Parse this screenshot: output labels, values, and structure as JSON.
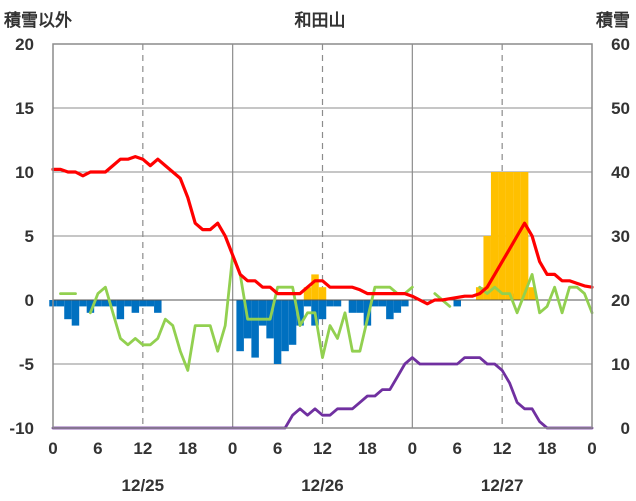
{
  "chart_data": {
    "type": "mixed",
    "title": "和田山",
    "left_axis_label": "積雪以外",
    "right_axis_label": "積雪",
    "left_ylim": [
      -10,
      20
    ],
    "left_ticks": [
      20,
      15,
      10,
      5,
      0,
      -5,
      -10
    ],
    "right_ylim": [
      0,
      60
    ],
    "right_ticks": [
      60,
      50,
      40,
      30,
      20,
      10,
      0
    ],
    "xlim": [
      0,
      72
    ],
    "x_tick_labels": [
      "0",
      "6",
      "12",
      "18",
      "0",
      "6",
      "12",
      "18",
      "0",
      "6",
      "12",
      "18",
      "0"
    ],
    "dates": [
      "12/25",
      "12/26",
      "12/27"
    ],
    "grid": true,
    "series": [
      {
        "kind": "bar",
        "color": "#0070c0",
        "axis": "left",
        "points": [
          [
            0,
            -0.5
          ],
          [
            1,
            -0.5
          ],
          [
            2,
            -1.5
          ],
          [
            3,
            -2
          ],
          [
            4,
            -0.5
          ],
          [
            5,
            -1
          ],
          [
            6,
            -0.5
          ],
          [
            7,
            -0.5
          ],
          [
            8,
            -0.5
          ],
          [
            9,
            -1.5
          ],
          [
            10,
            -0.5
          ],
          [
            11,
            -1
          ],
          [
            12,
            -0.5
          ],
          [
            13,
            -0.5
          ],
          [
            14,
            -1
          ],
          [
            25,
            -4
          ],
          [
            26,
            -3
          ],
          [
            27,
            -4.5
          ],
          [
            28,
            -2
          ],
          [
            29,
            -3
          ],
          [
            30,
            -5
          ],
          [
            31,
            -4
          ],
          [
            32,
            -3.5
          ],
          [
            33,
            -2
          ],
          [
            34,
            -0.5
          ],
          [
            35,
            -2
          ],
          [
            36,
            -1.5
          ],
          [
            37,
            -0.5
          ],
          [
            38,
            -0.5
          ],
          [
            40,
            -1
          ],
          [
            41,
            -1
          ],
          [
            42,
            -2
          ],
          [
            43,
            -0.5
          ],
          [
            44,
            -0.5
          ],
          [
            45,
            -1.5
          ],
          [
            46,
            -1
          ],
          [
            47,
            -0.5
          ],
          [
            54,
            -0.5
          ],
          [
            61,
            0.5
          ]
        ]
      },
      {
        "kind": "bar",
        "color": "#ffc000",
        "axis": "left",
        "points": [
          [
            34,
            1
          ],
          [
            35,
            2
          ],
          [
            36,
            1
          ],
          [
            57,
            1
          ],
          [
            58,
            5
          ],
          [
            59,
            10
          ],
          [
            60,
            10
          ],
          [
            61,
            10
          ],
          [
            62,
            10
          ],
          [
            63,
            10
          ],
          [
            64,
            1
          ]
        ]
      },
      {
        "kind": "line",
        "color": "#92d050",
        "axis": "left",
        "segments": [
          [
            [
              1,
              0.5
            ],
            [
              2,
              0.5
            ],
            [
              3,
              0.5
            ]
          ],
          [
            [
              5,
              -1
            ],
            [
              6,
              0.5
            ],
            [
              7,
              1
            ],
            [
              8,
              -1
            ],
            [
              9,
              -3
            ],
            [
              10,
              -3.5
            ],
            [
              11,
              -3
            ],
            [
              12,
              -3.5
            ],
            [
              13,
              -3.5
            ],
            [
              14,
              -3
            ],
            [
              15,
              -1.5
            ],
            [
              16,
              -2
            ],
            [
              17,
              -4
            ],
            [
              18,
              -5.5
            ],
            [
              19,
              -2
            ],
            [
              20,
              -2
            ],
            [
              21,
              -2
            ],
            [
              22,
              -4
            ],
            [
              23,
              -2
            ],
            [
              24,
              3.5
            ],
            [
              25,
              2
            ],
            [
              26,
              -1.5
            ],
            [
              27,
              -1.5
            ],
            [
              28,
              -1.5
            ],
            [
              29,
              -1.5
            ],
            [
              30,
              1
            ],
            [
              31,
              1
            ],
            [
              32,
              1
            ],
            [
              33,
              -2
            ],
            [
              34,
              -1
            ],
            [
              35,
              -1
            ],
            [
              36,
              -4.5
            ],
            [
              37,
              -2
            ],
            [
              38,
              -3
            ],
            [
              39,
              -1
            ],
            [
              40,
              -4
            ],
            [
              41,
              -4
            ],
            [
              42,
              -1.5
            ],
            [
              43,
              1
            ],
            [
              44,
              1
            ],
            [
              45,
              1
            ],
            [
              46,
              0.5
            ],
            [
              47,
              0.5
            ],
            [
              48,
              1
            ]
          ],
          [
            [
              51,
              0.5
            ],
            [
              52,
              0
            ],
            [
              53,
              -0.5
            ]
          ],
          [
            [
              57,
              1
            ],
            [
              58,
              0.5
            ],
            [
              59,
              1
            ],
            [
              60,
              0.5
            ],
            [
              61,
              0.5
            ],
            [
              62,
              -1
            ],
            [
              63,
              0.5
            ],
            [
              64,
              2
            ],
            [
              65,
              -1
            ],
            [
              66,
              -0.5
            ],
            [
              67,
              1
            ],
            [
              68,
              -1
            ],
            [
              69,
              1
            ],
            [
              70,
              1
            ],
            [
              71,
              0.5
            ],
            [
              72,
              -1
            ]
          ]
        ]
      },
      {
        "kind": "line",
        "color": "#ff0000",
        "axis": "left",
        "segments": [
          [
            [
              0,
              10.2
            ],
            [
              1,
              10.2
            ],
            [
              2,
              10
            ],
            [
              3,
              10
            ],
            [
              4,
              9.7
            ],
            [
              5,
              10
            ],
            [
              6,
              10
            ],
            [
              7,
              10
            ],
            [
              8,
              10.5
            ],
            [
              9,
              11
            ],
            [
              10,
              11
            ],
            [
              11,
              11.2
            ],
            [
              12,
              11
            ],
            [
              13,
              10.5
            ],
            [
              14,
              11
            ],
            [
              15,
              10.5
            ],
            [
              16,
              10
            ],
            [
              17,
              9.5
            ],
            [
              18,
              8
            ],
            [
              19,
              6
            ],
            [
              20,
              5.5
            ],
            [
              21,
              5.5
            ],
            [
              22,
              6
            ],
            [
              23,
              5
            ],
            [
              24,
              3.5
            ],
            [
              25,
              2
            ],
            [
              26,
              1.5
            ],
            [
              27,
              1.5
            ],
            [
              28,
              1
            ],
            [
              29,
              1
            ],
            [
              30,
              0.5
            ],
            [
              31,
              0.5
            ],
            [
              32,
              0.5
            ],
            [
              33,
              0.5
            ],
            [
              34,
              1
            ],
            [
              35,
              1.5
            ],
            [
              36,
              1.5
            ],
            [
              37,
              1
            ],
            [
              38,
              1
            ],
            [
              39,
              1
            ],
            [
              40,
              1
            ],
            [
              41,
              0.8
            ],
            [
              42,
              0.5
            ],
            [
              43,
              0.5
            ],
            [
              44,
              0.5
            ],
            [
              45,
              0.5
            ],
            [
              46,
              0.5
            ],
            [
              47,
              0.5
            ],
            [
              48,
              0.3
            ],
            [
              49,
              0
            ],
            [
              50,
              -0.3
            ],
            [
              51,
              0
            ],
            [
              52,
              0
            ],
            [
              53,
              0.1
            ],
            [
              54,
              0.2
            ],
            [
              55,
              0.3
            ],
            [
              56,
              0.3
            ],
            [
              57,
              0.5
            ],
            [
              58,
              1
            ],
            [
              59,
              2
            ],
            [
              60,
              3
            ],
            [
              61,
              4
            ],
            [
              62,
              5
            ],
            [
              63,
              6
            ],
            [
              64,
              5
            ],
            [
              65,
              3
            ],
            [
              66,
              2
            ],
            [
              67,
              2
            ],
            [
              68,
              1.5
            ],
            [
              69,
              1.5
            ],
            [
              70,
              1.3
            ],
            [
              71,
              1.1
            ],
            [
              72,
              1
            ]
          ]
        ]
      },
      {
        "kind": "line",
        "color": "#7030a0",
        "axis": "right",
        "segments": [
          [
            [
              0,
              0
            ],
            [
              31,
              0
            ],
            [
              32,
              2
            ],
            [
              33,
              3
            ],
            [
              34,
              2
            ],
            [
              35,
              3
            ],
            [
              36,
              2
            ],
            [
              37,
              2
            ],
            [
              38,
              3
            ],
            [
              39,
              3
            ],
            [
              40,
              3
            ],
            [
              41,
              4
            ],
            [
              42,
              5
            ],
            [
              43,
              5
            ],
            [
              44,
              6
            ],
            [
              45,
              6
            ],
            [
              46,
              8
            ],
            [
              47,
              10
            ],
            [
              48,
              11
            ],
            [
              49,
              10
            ],
            [
              50,
              10
            ],
            [
              51,
              10
            ],
            [
              52,
              10
            ],
            [
              53,
              10
            ],
            [
              54,
              10
            ],
            [
              55,
              11
            ],
            [
              56,
              11
            ],
            [
              57,
              11
            ],
            [
              58,
              10
            ],
            [
              59,
              10
            ],
            [
              60,
              9
            ],
            [
              61,
              7
            ],
            [
              62,
              4
            ],
            [
              63,
              3
            ],
            [
              64,
              3
            ],
            [
              65,
              1
            ],
            [
              66,
              0
            ],
            [
              72,
              0
            ]
          ]
        ]
      }
    ]
  }
}
